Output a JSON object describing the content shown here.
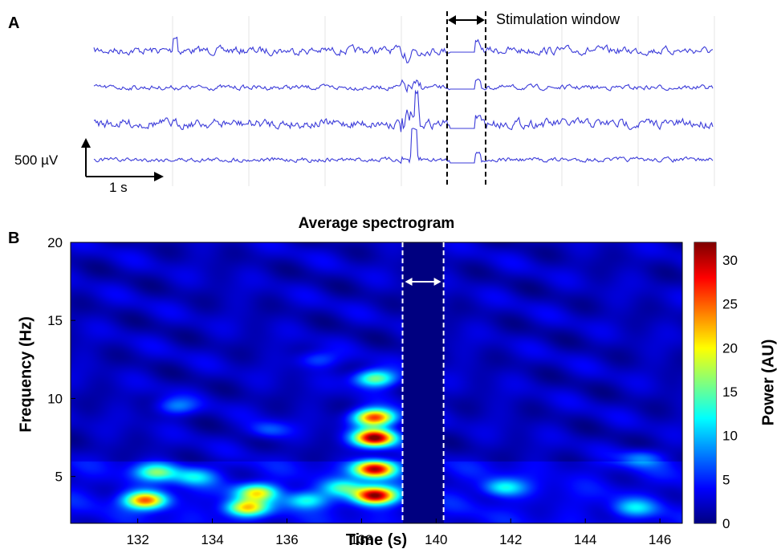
{
  "panelA": {
    "letter": "A",
    "stim_label": "Stimulation window",
    "scale_voltage": "500 µV",
    "scale_time": "1 s",
    "trace_color": "#3b3bd9",
    "trace_count": 4
  },
  "panelB": {
    "letter": "B"
  },
  "chart_data": {
    "type": "heatmap",
    "title": "Average spectrogram",
    "xlabel": "Time (s)",
    "ylabel": "Frequency (Hz)",
    "colorbar_label": "Power (AU)",
    "xlim": [
      130.2,
      146.6
    ],
    "ylim": [
      2,
      20
    ],
    "zlim": [
      0,
      32
    ],
    "colormap": "jet",
    "x_ticks": [
      132,
      134,
      136,
      138,
      140,
      142,
      144,
      146
    ],
    "x_tick_labels": [
      "132",
      "134",
      "136",
      "138",
      "140",
      "142",
      "144",
      "146"
    ],
    "y_ticks": [
      5,
      10,
      15,
      20
    ],
    "y_tick_labels": [
      "5",
      "10",
      "15",
      "20"
    ],
    "colorbar_ticks": [
      0,
      5,
      10,
      15,
      20,
      25,
      30
    ],
    "colorbar_tick_labels": [
      "0",
      "5",
      "10",
      "15",
      "20",
      "25",
      "30"
    ],
    "stimulation_window": [
      139.1,
      140.2
    ],
    "background_power": 2,
    "blobs": [
      {
        "t": 132.2,
        "f": 3.5,
        "power": 22
      },
      {
        "t": 132.5,
        "f": 5.3,
        "power": 12
      },
      {
        "t": 133.5,
        "f": 5.0,
        "power": 8
      },
      {
        "t": 134.9,
        "f": 3.0,
        "power": 18
      },
      {
        "t": 135.2,
        "f": 4.0,
        "power": 16
      },
      {
        "t": 136.5,
        "f": 3.5,
        "power": 10
      },
      {
        "t": 138.35,
        "f": 3.8,
        "power": 29
      },
      {
        "t": 138.35,
        "f": 5.5,
        "power": 28
      },
      {
        "t": 138.35,
        "f": 7.5,
        "power": 30
      },
      {
        "t": 138.35,
        "f": 8.8,
        "power": 25
      },
      {
        "t": 138.35,
        "f": 11.3,
        "power": 15
      },
      {
        "t": 137.5,
        "f": 4.3,
        "power": 10
      },
      {
        "t": 141.8,
        "f": 4.3,
        "power": 9
      },
      {
        "t": 145.3,
        "f": 3.0,
        "power": 7
      },
      {
        "t": 145.5,
        "f": 6.2,
        "power": 6
      },
      {
        "t": 133.0,
        "f": 9.5,
        "power": 6
      },
      {
        "t": 135.5,
        "f": 8.0,
        "power": 5
      },
      {
        "t": 136.8,
        "f": 12.5,
        "power": 5
      }
    ]
  }
}
